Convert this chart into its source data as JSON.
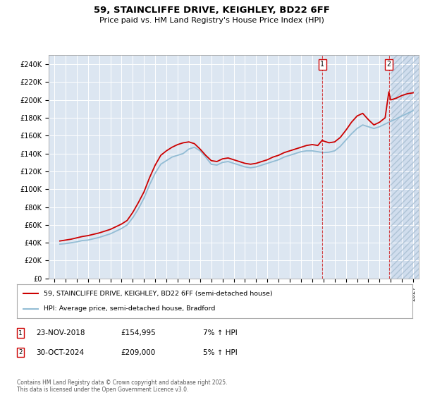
{
  "title": "59, STAINCLIFFE DRIVE, KEIGHLEY, BD22 6FF",
  "subtitle": "Price paid vs. HM Land Registry's House Price Index (HPI)",
  "ylim": [
    0,
    250000
  ],
  "yticks": [
    0,
    20000,
    40000,
    60000,
    80000,
    100000,
    120000,
    140000,
    160000,
    180000,
    200000,
    220000,
    240000
  ],
  "ytick_labels": [
    "£0",
    "£20K",
    "£40K",
    "£60K",
    "£80K",
    "£100K",
    "£120K",
    "£140K",
    "£160K",
    "£180K",
    "£200K",
    "£220K",
    "£240K"
  ],
  "background_color": "#dce6f1",
  "hpi_color": "#92bcd4",
  "price_color": "#cc0000",
  "sale1_date": "23-NOV-2018",
  "sale1_price_str": "£154,995",
  "sale1_hpi_pct": "7% ↑ HPI",
  "sale2_date": "30-OCT-2024",
  "sale2_price_str": "£209,000",
  "sale2_hpi_pct": "5% ↑ HPI",
  "legend_line1": "59, STAINCLIFFE DRIVE, KEIGHLEY, BD22 6FF (semi-detached house)",
  "legend_line2": "HPI: Average price, semi-detached house, Bradford",
  "footer": "Contains HM Land Registry data © Crown copyright and database right 2025.\nThis data is licensed under the Open Government Licence v3.0.",
  "hpi_data": [
    [
      1995.5,
      38500
    ],
    [
      1996.0,
      39000
    ],
    [
      1996.5,
      40000
    ],
    [
      1997.0,
      41000
    ],
    [
      1997.5,
      42500
    ],
    [
      1998.0,
      43000
    ],
    [
      1998.5,
      44500
    ],
    [
      1999.0,
      46000
    ],
    [
      1999.5,
      48000
    ],
    [
      2000.0,
      50000
    ],
    [
      2000.5,
      53000
    ],
    [
      2001.0,
      56000
    ],
    [
      2001.5,
      60000
    ],
    [
      2002.0,
      68000
    ],
    [
      2002.5,
      78000
    ],
    [
      2003.0,
      90000
    ],
    [
      2003.5,
      105000
    ],
    [
      2004.0,
      118000
    ],
    [
      2004.5,
      128000
    ],
    [
      2005.0,
      132000
    ],
    [
      2005.5,
      136000
    ],
    [
      2006.0,
      138000
    ],
    [
      2006.5,
      140000
    ],
    [
      2007.0,
      145000
    ],
    [
      2007.5,
      147000
    ],
    [
      2008.0,
      143000
    ],
    [
      2008.5,
      136000
    ],
    [
      2009.0,
      128000
    ],
    [
      2009.5,
      127000
    ],
    [
      2010.0,
      130000
    ],
    [
      2010.5,
      131000
    ],
    [
      2011.0,
      129000
    ],
    [
      2011.5,
      127000
    ],
    [
      2012.0,
      125000
    ],
    [
      2012.5,
      124000
    ],
    [
      2013.0,
      125000
    ],
    [
      2013.5,
      127000
    ],
    [
      2014.0,
      129000
    ],
    [
      2014.5,
      131000
    ],
    [
      2015.0,
      133000
    ],
    [
      2015.5,
      136000
    ],
    [
      2016.0,
      138000
    ],
    [
      2016.5,
      140000
    ],
    [
      2017.0,
      142000
    ],
    [
      2017.5,
      143000
    ],
    [
      2018.0,
      143000
    ],
    [
      2018.5,
      142000
    ],
    [
      2019.0,
      141000
    ],
    [
      2019.5,
      141500
    ],
    [
      2020.0,
      143000
    ],
    [
      2020.5,
      148000
    ],
    [
      2021.0,
      155000
    ],
    [
      2021.5,
      162000
    ],
    [
      2022.0,
      168000
    ],
    [
      2022.5,
      172000
    ],
    [
      2023.0,
      170000
    ],
    [
      2023.5,
      168000
    ],
    [
      2024.0,
      170000
    ],
    [
      2024.5,
      173000
    ],
    [
      2025.0,
      176000
    ],
    [
      2025.5,
      179000
    ],
    [
      2026.0,
      182000
    ],
    [
      2026.5,
      185000
    ],
    [
      2027.0,
      188000
    ]
  ],
  "price_data": [
    [
      1995.5,
      42000
    ],
    [
      1996.0,
      43000
    ],
    [
      1996.5,
      44000
    ],
    [
      1997.0,
      45500
    ],
    [
      1997.5,
      47000
    ],
    [
      1998.0,
      48000
    ],
    [
      1998.5,
      49500
    ],
    [
      1999.0,
      51000
    ],
    [
      1999.5,
      53000
    ],
    [
      2000.0,
      55000
    ],
    [
      2000.5,
      58000
    ],
    [
      2001.0,
      61000
    ],
    [
      2001.5,
      65000
    ],
    [
      2002.0,
      74000
    ],
    [
      2002.5,
      85000
    ],
    [
      2003.0,
      97000
    ],
    [
      2003.5,
      113000
    ],
    [
      2004.0,
      127000
    ],
    [
      2004.5,
      138000
    ],
    [
      2005.0,
      143000
    ],
    [
      2005.5,
      147000
    ],
    [
      2006.0,
      150000
    ],
    [
      2006.5,
      152000
    ],
    [
      2007.0,
      153000
    ],
    [
      2007.5,
      151000
    ],
    [
      2008.0,
      145000
    ],
    [
      2008.5,
      138000
    ],
    [
      2009.0,
      132000
    ],
    [
      2009.5,
      131000
    ],
    [
      2010.0,
      134000
    ],
    [
      2010.5,
      135000
    ],
    [
      2011.0,
      133000
    ],
    [
      2011.5,
      131000
    ],
    [
      2012.0,
      129000
    ],
    [
      2012.5,
      128000
    ],
    [
      2013.0,
      129000
    ],
    [
      2013.5,
      131000
    ],
    [
      2014.0,
      133000
    ],
    [
      2014.5,
      136000
    ],
    [
      2015.0,
      138000
    ],
    [
      2015.5,
      141000
    ],
    [
      2016.0,
      143000
    ],
    [
      2016.5,
      145000
    ],
    [
      2017.0,
      147000
    ],
    [
      2017.5,
      149000
    ],
    [
      2018.0,
      150000
    ],
    [
      2018.5,
      149000
    ],
    [
      2018.9,
      155000
    ],
    [
      2019.0,
      154000
    ],
    [
      2019.5,
      152000
    ],
    [
      2020.0,
      153000
    ],
    [
      2020.5,
      158000
    ],
    [
      2021.0,
      166000
    ],
    [
      2021.5,
      175000
    ],
    [
      2022.0,
      182000
    ],
    [
      2022.5,
      185000
    ],
    [
      2023.0,
      178000
    ],
    [
      2023.5,
      172000
    ],
    [
      2024.0,
      175000
    ],
    [
      2024.5,
      180000
    ],
    [
      2024.83,
      209000
    ],
    [
      2025.0,
      200000
    ],
    [
      2025.5,
      202000
    ],
    [
      2026.0,
      205000
    ],
    [
      2026.5,
      207000
    ],
    [
      2027.0,
      208000
    ]
  ],
  "sale1_x": 2018.9,
  "sale2_x": 2024.83,
  "future_start": 2025.0,
  "xlim": [
    1994.5,
    2027.5
  ]
}
